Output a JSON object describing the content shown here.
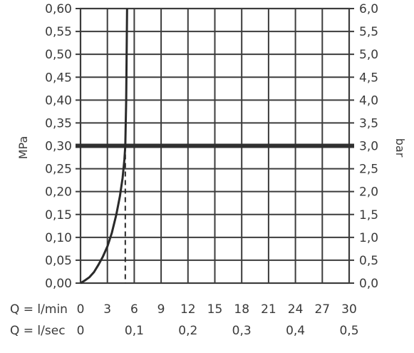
{
  "chart_data": {
    "type": "line",
    "title": "",
    "ylabel": "MPa",
    "y2label": "bar",
    "ylim": [
      0,
      0.6
    ],
    "y_ticks": [
      "0,00",
      "0,05",
      "0,10",
      "0,15",
      "0,20",
      "0,25",
      "0,30",
      "0,35",
      "0,40",
      "0,45",
      "0,50",
      "0,55",
      "0,60"
    ],
    "y2_ticks": [
      "0,0",
      "0,5",
      "1,0",
      "1,5",
      "2,0",
      "2,5",
      "3,0",
      "3,5",
      "4,0",
      "4,5",
      "5,0",
      "5,5",
      "6,0"
    ],
    "xlim": [
      0,
      30
    ],
    "x_row1_label": "Q = l/min",
    "x_ticks_lmin": [
      "0",
      "3",
      "6",
      "9",
      "12",
      "15",
      "18",
      "21",
      "24",
      "27",
      "30"
    ],
    "x_row2_label": "Q = l/sec",
    "x_ticks_lsec": [
      {
        "x": 0,
        "label": "0"
      },
      {
        "x": 6,
        "label": "0,1"
      },
      {
        "x": 12,
        "label": "0,2"
      },
      {
        "x": 18,
        "label": "0,3"
      },
      {
        "x": 24,
        "label": "0,4"
      },
      {
        "x": 30,
        "label": "0,5"
      }
    ],
    "grid": true,
    "series": [
      {
        "x": [
          0,
          0.5,
          1.0,
          1.5,
          2.0,
          2.5,
          3.0,
          3.5,
          4.0,
          4.4,
          4.7,
          4.9,
          5.0,
          5.1,
          5.2
        ],
        "y": [
          0,
          0.006,
          0.013,
          0.024,
          0.04,
          0.058,
          0.08,
          0.11,
          0.15,
          0.19,
          0.23,
          0.27,
          0.3,
          0.4,
          0.6
        ]
      }
    ],
    "reference_line_y": 0.3,
    "drop_line_x": 5.0
  }
}
